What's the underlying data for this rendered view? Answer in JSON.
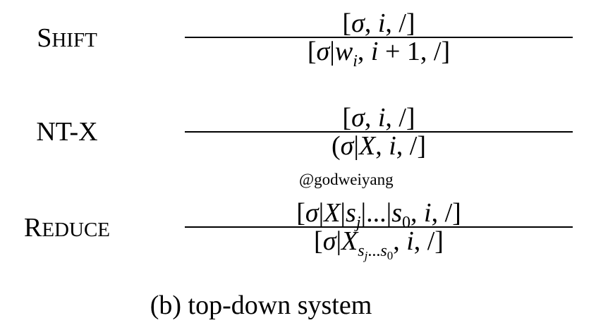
{
  "rules": [
    {
      "name_first": "S",
      "name_rest": "HIFT",
      "premise": "[σ, i, /]",
      "conclusion": "[σ|w_i, i + 1, /]"
    },
    {
      "name_full": "NT-X",
      "premise": "[σ, i, /]",
      "conclusion": "(σ|X, i, /]"
    },
    {
      "name_first": "R",
      "name_rest": "EDUCE",
      "premise": "[σ|X|s_j|...|s_0, i, /]",
      "conclusion": "[σ|X_{s_j...s_0}, i, /]"
    }
  ],
  "watermark": "@godweiyang",
  "caption": "(b) top-down system"
}
